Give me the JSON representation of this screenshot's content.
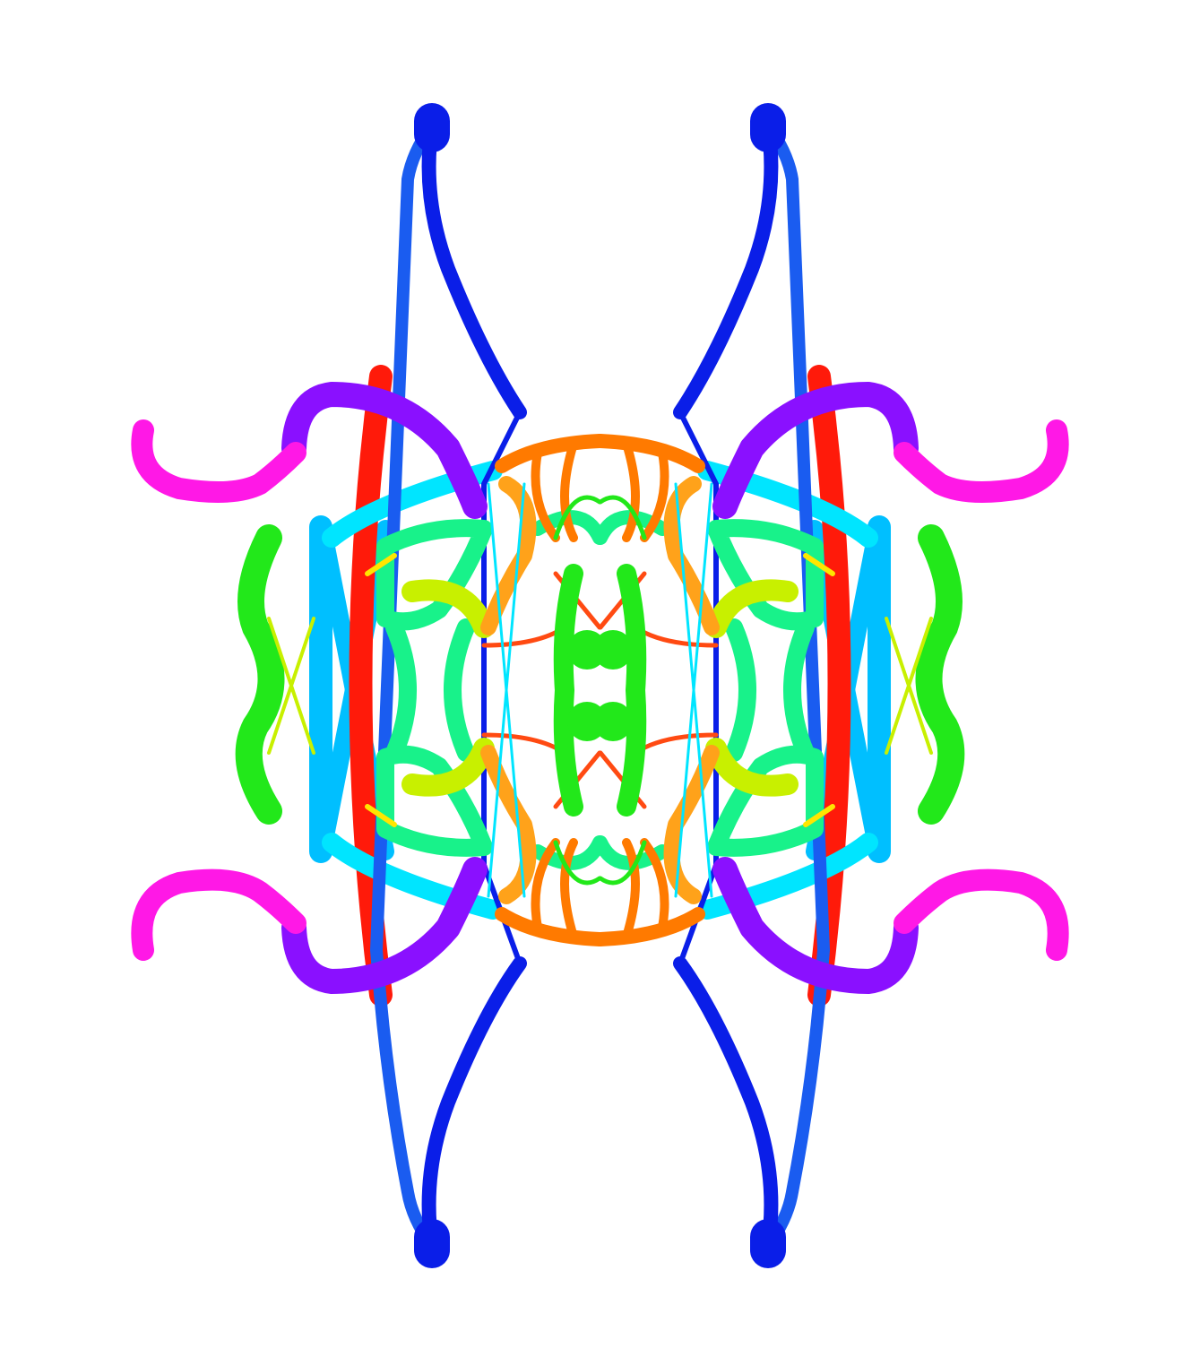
{
  "artwork": {
    "description_symmetry": "mirror",
    "palette": {
      "background": "#ffffff",
      "blue": "#0a1ee8",
      "blue_mid": "#1a5cf0",
      "sky": "#00bfff",
      "cyan": "#00e5ff",
      "mint": "#18f28a",
      "green": "#22e81a",
      "lime": "#c8f000",
      "yellow": "#ffe600",
      "orange": "#ff7a00",
      "orange_light": "#ffa21a",
      "red": "#ff1a0a",
      "red_orange": "#ff4a12",
      "violet": "#8a10ff",
      "magenta": "#ff18e6"
    }
  }
}
